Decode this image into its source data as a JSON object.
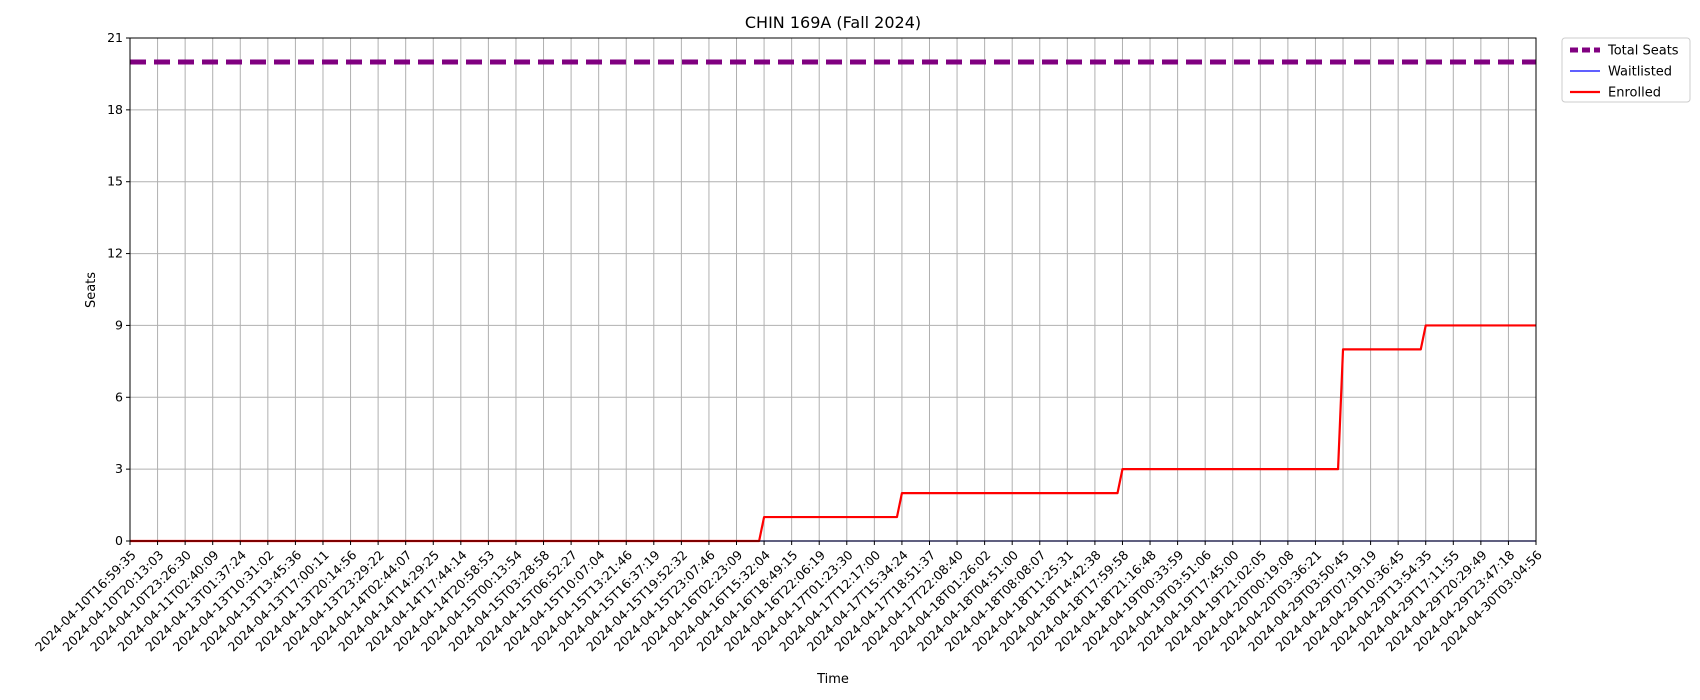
{
  "chart_data": {
    "type": "line",
    "title": "CHIN 169A (Fall 2024)",
    "xlabel": "Time",
    "ylabel": "Seats",
    "ylim": [
      0,
      21
    ],
    "yticks": [
      0,
      3,
      6,
      9,
      12,
      15,
      18,
      21
    ],
    "grid": true,
    "legend_placement": "outside-top-right",
    "x": [
      "2024-04-10T16:59:35",
      "2024-04-10T20:13:03",
      "2024-04-10T23:26:30",
      "2024-04-11T02:40:09",
      "2024-04-13T01:37:24",
      "2024-04-13T10:31:02",
      "2024-04-13T13:45:36",
      "2024-04-13T17:00:11",
      "2024-04-13T20:14:56",
      "2024-04-13T23:29:22",
      "2024-04-14T02:44:07",
      "2024-04-14T14:29:25",
      "2024-04-14T17:44:14",
      "2024-04-14T20:58:53",
      "2024-04-15T00:13:54",
      "2024-04-15T03:28:58",
      "2024-04-15T06:52:27",
      "2024-04-15T10:07:04",
      "2024-04-15T13:21:46",
      "2024-04-15T16:37:19",
      "2024-04-15T19:52:32",
      "2024-04-15T23:07:46",
      "2024-04-16T02:23:09",
      "2024-04-16T15:32:04",
      "2024-04-16T18:49:15",
      "2024-04-16T22:06:19",
      "2024-04-17T01:23:30",
      "2024-04-17T12:17:00",
      "2024-04-17T15:34:24",
      "2024-04-17T18:51:37",
      "2024-04-17T22:08:40",
      "2024-04-18T01:26:02",
      "2024-04-18T04:51:00",
      "2024-04-18T08:08:07",
      "2024-04-18T11:25:31",
      "2024-04-18T14:42:38",
      "2024-04-18T17:59:58",
      "2024-04-18T21:16:48",
      "2024-04-19T00:33:59",
      "2024-04-19T03:51:06",
      "2024-04-19T17:45:00",
      "2024-04-19T21:02:05",
      "2024-04-20T00:19:08",
      "2024-04-20T03:36:21",
      "2024-04-29T03:50:45",
      "2024-04-29T07:19:19",
      "2024-04-29T10:36:45",
      "2024-04-29T13:54:35",
      "2024-04-29T17:11:55",
      "2024-04-29T20:29:49",
      "2024-04-29T23:47:18",
      "2024-04-30T03:04:56"
    ],
    "series": [
      {
        "name": "Total Seats",
        "color": "#800080",
        "style": "dashed",
        "values": [
          20,
          20,
          20,
          20,
          20,
          20,
          20,
          20,
          20,
          20,
          20,
          20,
          20,
          20,
          20,
          20,
          20,
          20,
          20,
          20,
          20,
          20,
          20,
          20,
          20,
          20,
          20,
          20,
          20,
          20,
          20,
          20,
          20,
          20,
          20,
          20,
          20,
          20,
          20,
          20,
          20,
          20,
          20,
          20,
          20,
          20,
          20,
          20,
          20,
          20,
          20,
          20
        ]
      },
      {
        "name": "Waitlisted",
        "color": "#0000ff",
        "style": "solid-thin",
        "values": [
          0,
          0,
          0,
          0,
          0,
          0,
          0,
          0,
          0,
          0,
          0,
          0,
          0,
          0,
          0,
          0,
          0,
          0,
          0,
          0,
          0,
          0,
          0,
          0,
          0,
          0,
          0,
          0,
          0,
          0,
          0,
          0,
          0,
          0,
          0,
          0,
          0,
          0,
          0,
          0,
          0,
          0,
          0,
          0,
          0,
          0,
          0,
          0,
          0,
          0,
          0,
          0
        ]
      },
      {
        "name": "Enrolled",
        "color": "#ff0000",
        "style": "solid",
        "values": [
          0,
          0,
          0,
          0,
          0,
          0,
          0,
          0,
          0,
          0,
          0,
          0,
          0,
          0,
          0,
          0,
          0,
          0,
          0,
          0,
          0,
          0,
          0,
          1,
          1,
          1,
          1,
          1,
          2,
          2,
          2,
          2,
          2,
          2,
          2,
          2,
          3,
          3,
          3,
          3,
          3,
          3,
          3,
          3,
          8,
          8,
          8,
          9,
          9,
          9,
          9,
          9
        ]
      }
    ]
  }
}
